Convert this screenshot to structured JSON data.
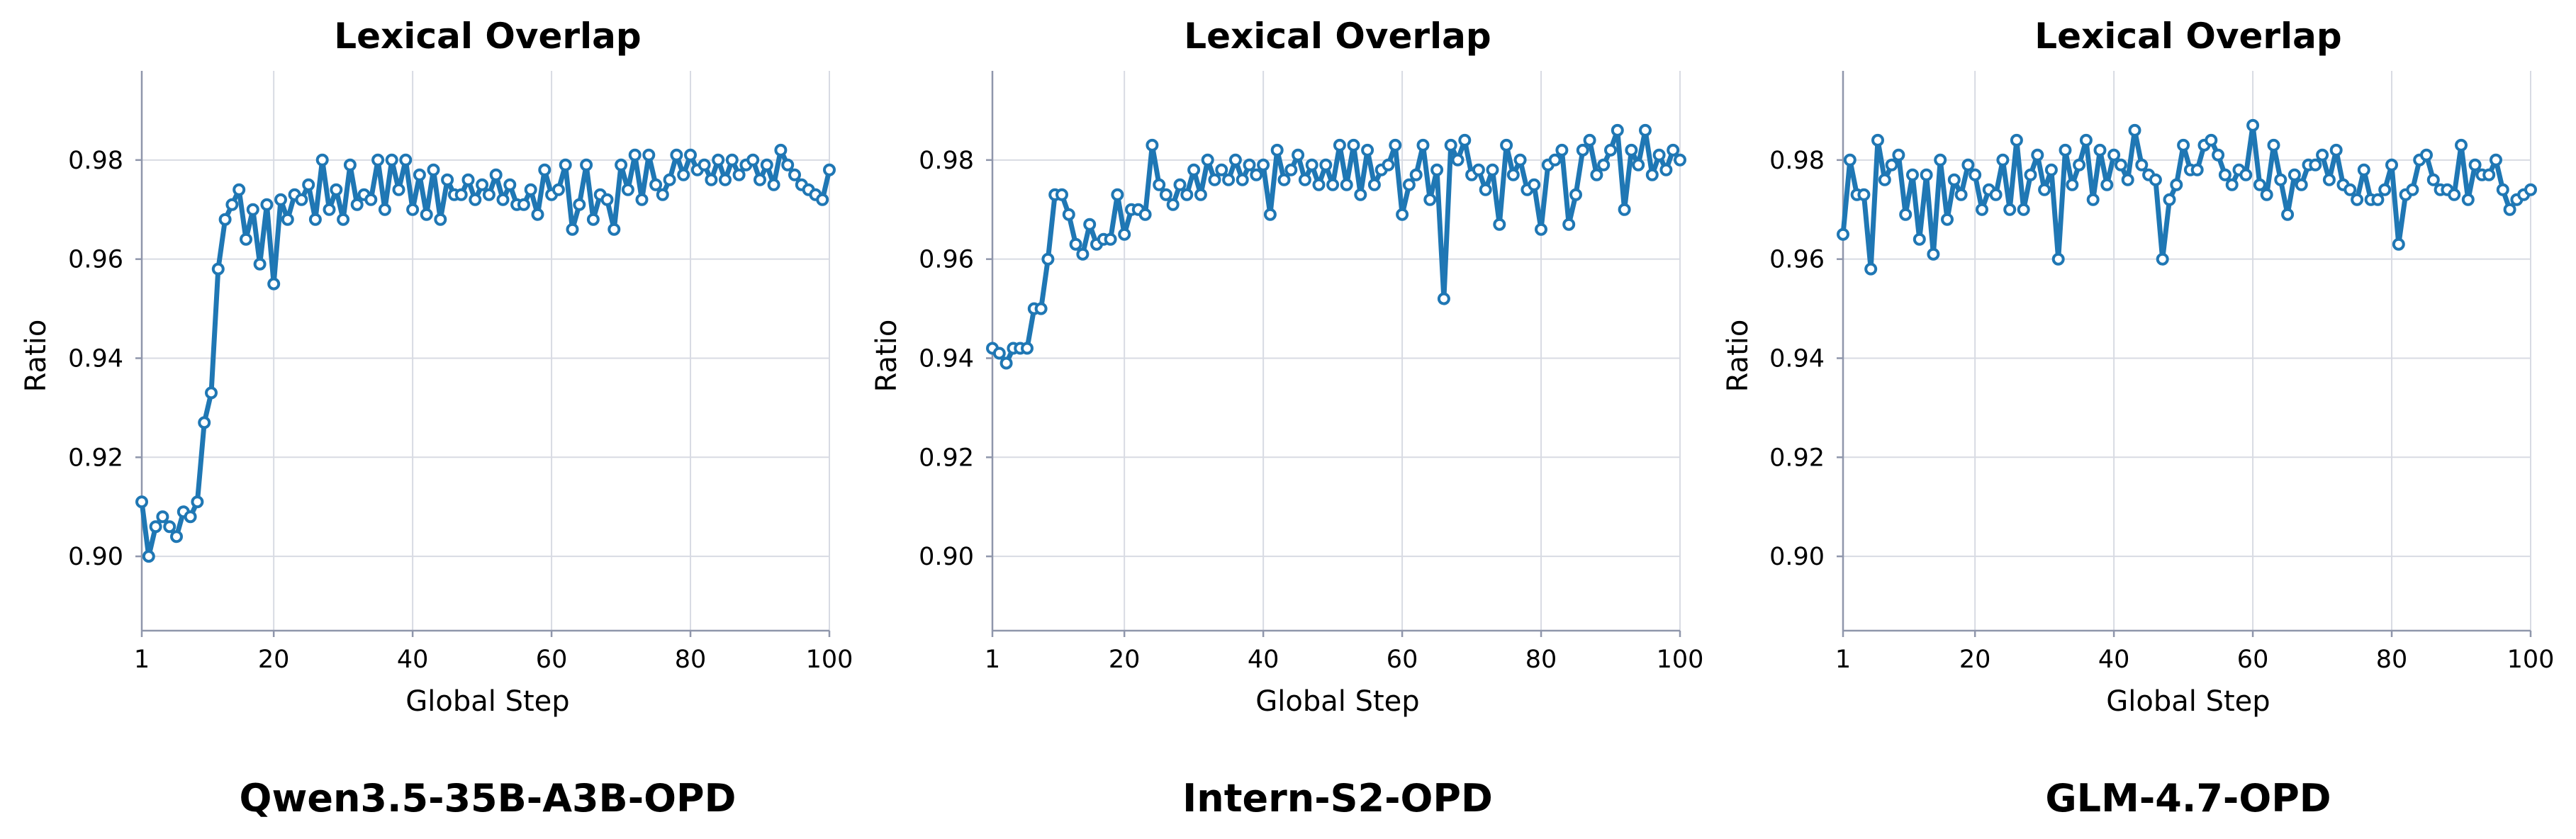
{
  "chart_data": [
    {
      "type": "line",
      "title": "Lexical Overlap",
      "caption": "Qwen3.5-35B-A3B-OPD",
      "xlabel": "Global Step",
      "ylabel": "Ratio",
      "xlim": [
        1,
        100
      ],
      "ylim": [
        0.885,
        0.998
      ],
      "xticks": [
        1,
        20,
        40,
        60,
        80,
        100
      ],
      "yticks": [
        0.9,
        0.92,
        0.94,
        0.96,
        0.98
      ],
      "color": "#1f77b4",
      "grid": true,
      "y": [
        0.911,
        0.9,
        0.906,
        0.908,
        0.906,
        0.904,
        0.909,
        0.908,
        0.911,
        0.927,
        0.933,
        0.958,
        0.968,
        0.971,
        0.974,
        0.964,
        0.97,
        0.959,
        0.971,
        0.955,
        0.972,
        0.968,
        0.973,
        0.972,
        0.975,
        0.968,
        0.98,
        0.97,
        0.974,
        0.968,
        0.979,
        0.971,
        0.973,
        0.972,
        0.98,
        0.97,
        0.98,
        0.974,
        0.98,
        0.97,
        0.977,
        0.969,
        0.978,
        0.968,
        0.976,
        0.973,
        0.973,
        0.976,
        0.972,
        0.975,
        0.973,
        0.977,
        0.972,
        0.975,
        0.971,
        0.971,
        0.974,
        0.969,
        0.978,
        0.973,
        0.974,
        0.979,
        0.966,
        0.971,
        0.979,
        0.968,
        0.973,
        0.972,
        0.966,
        0.979,
        0.974,
        0.981,
        0.972,
        0.981,
        0.975,
        0.973,
        0.976,
        0.981,
        0.977,
        0.981,
        0.978,
        0.979,
        0.976,
        0.98,
        0.976,
        0.98,
        0.977,
        0.979,
        0.98,
        0.976,
        0.979,
        0.975,
        0.982,
        0.979,
        0.977,
        0.975,
        0.974,
        0.973,
        0.972,
        0.978
      ]
    },
    {
      "type": "line",
      "title": "Lexical Overlap",
      "caption": "Intern-S2-OPD",
      "xlabel": "Global Step",
      "ylabel": "Ratio",
      "xlim": [
        1,
        100
      ],
      "ylim": [
        0.885,
        0.998
      ],
      "xticks": [
        1,
        20,
        40,
        60,
        80,
        100
      ],
      "yticks": [
        0.9,
        0.92,
        0.94,
        0.96,
        0.98
      ],
      "color": "#1f77b4",
      "grid": true,
      "y": [
        0.942,
        0.941,
        0.939,
        0.942,
        0.942,
        0.942,
        0.95,
        0.95,
        0.96,
        0.973,
        0.973,
        0.969,
        0.963,
        0.961,
        0.967,
        0.963,
        0.964,
        0.964,
        0.973,
        0.965,
        0.97,
        0.97,
        0.969,
        0.983,
        0.975,
        0.973,
        0.971,
        0.975,
        0.973,
        0.978,
        0.973,
        0.98,
        0.976,
        0.978,
        0.976,
        0.98,
        0.976,
        0.979,
        0.977,
        0.979,
        0.969,
        0.982,
        0.976,
        0.978,
        0.981,
        0.976,
        0.979,
        0.975,
        0.979,
        0.975,
        0.983,
        0.975,
        0.983,
        0.973,
        0.982,
        0.975,
        0.978,
        0.979,
        0.983,
        0.969,
        0.975,
        0.977,
        0.983,
        0.972,
        0.978,
        0.952,
        0.983,
        0.98,
        0.984,
        0.977,
        0.978,
        0.974,
        0.978,
        0.967,
        0.983,
        0.977,
        0.98,
        0.974,
        0.975,
        0.966,
        0.979,
        0.98,
        0.982,
        0.967,
        0.973,
        0.982,
        0.984,
        0.977,
        0.979,
        0.982,
        0.986,
        0.97,
        0.982,
        0.979,
        0.986,
        0.977,
        0.981,
        0.978,
        0.982,
        0.98
      ]
    },
    {
      "type": "line",
      "title": "Lexical Overlap",
      "caption": "GLM-4.7-OPD",
      "xlabel": "Global Step",
      "ylabel": "Ratio",
      "xlim": [
        1,
        100
      ],
      "ylim": [
        0.885,
        0.998
      ],
      "xticks": [
        1,
        20,
        40,
        60,
        80,
        100
      ],
      "yticks": [
        0.9,
        0.92,
        0.94,
        0.96,
        0.98
      ],
      "color": "#1f77b4",
      "grid": true,
      "y": [
        0.965,
        0.98,
        0.973,
        0.973,
        0.958,
        0.984,
        0.976,
        0.979,
        0.981,
        0.969,
        0.977,
        0.964,
        0.977,
        0.961,
        0.98,
        0.968,
        0.976,
        0.973,
        0.979,
        0.977,
        0.97,
        0.974,
        0.973,
        0.98,
        0.97,
        0.984,
        0.97,
        0.977,
        0.981,
        0.974,
        0.978,
        0.96,
        0.982,
        0.975,
        0.979,
        0.984,
        0.972,
        0.982,
        0.975,
        0.981,
        0.979,
        0.976,
        0.986,
        0.979,
        0.977,
        0.976,
        0.96,
        0.972,
        0.975,
        0.983,
        0.978,
        0.978,
        0.983,
        0.984,
        0.981,
        0.977,
        0.975,
        0.978,
        0.977,
        0.987,
        0.975,
        0.973,
        0.983,
        0.976,
        0.969,
        0.977,
        0.975,
        0.979,
        0.979,
        0.981,
        0.976,
        0.982,
        0.975,
        0.974,
        0.972,
        0.978,
        0.972,
        0.972,
        0.974,
        0.979,
        0.963,
        0.973,
        0.974,
        0.98,
        0.981,
        0.976,
        0.974,
        0.974,
        0.973,
        0.983,
        0.972,
        0.979,
        0.977,
        0.977,
        0.98,
        0.974,
        0.97,
        0.972,
        0.973,
        0.974
      ]
    }
  ]
}
